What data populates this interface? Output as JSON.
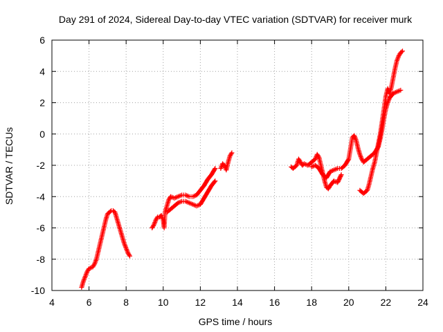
{
  "chart_data": {
    "type": "scatter",
    "title": "Day 291 of 2024, Sidereal Day-to-day VTEC variation (SDTVAR) for receiver murk",
    "xlabel": "GPS time / hours",
    "ylabel": "SDTVAR / TECUs",
    "xlim": [
      4,
      24
    ],
    "ylim": [
      -10,
      6
    ],
    "xticks": [
      4,
      6,
      8,
      10,
      12,
      14,
      16,
      18,
      20,
      22,
      24
    ],
    "yticks": [
      -10,
      -8,
      -6,
      -4,
      -2,
      0,
      2,
      4,
      6
    ],
    "grid": true,
    "marker": "+",
    "marker_color": "#ff0000",
    "segments": [
      [
        [
          5.6,
          -9.8
        ],
        [
          5.7,
          -9.4
        ],
        [
          5.8,
          -9.1
        ],
        [
          5.9,
          -8.8
        ],
        [
          6.0,
          -8.6
        ],
        [
          6.2,
          -8.5
        ],
        [
          6.3,
          -8.3
        ],
        [
          6.4,
          -8.0
        ],
        [
          6.5,
          -7.5
        ],
        [
          6.6,
          -7.0
        ],
        [
          6.7,
          -6.5
        ],
        [
          6.8,
          -6.0
        ],
        [
          6.9,
          -5.5
        ],
        [
          7.0,
          -5.1
        ],
        [
          7.1,
          -5.0
        ],
        [
          7.2,
          -4.9
        ],
        [
          7.3,
          -4.9
        ],
        [
          7.4,
          -5.0
        ],
        [
          7.5,
          -5.4
        ],
        [
          7.6,
          -5.8
        ],
        [
          7.7,
          -6.2
        ],
        [
          7.8,
          -6.6
        ],
        [
          7.9,
          -7.0
        ],
        [
          8.0,
          -7.3
        ],
        [
          8.1,
          -7.6
        ],
        [
          8.2,
          -7.8
        ]
      ],
      [
        [
          9.4,
          -6.0
        ],
        [
          9.5,
          -5.8
        ],
        [
          9.6,
          -5.5
        ],
        [
          9.7,
          -5.3
        ],
        [
          9.8,
          -5.3
        ],
        [
          9.9,
          -5.2
        ],
        [
          10.0,
          -5.5
        ],
        [
          10.05,
          -6.0
        ],
        [
          10.1,
          -5.0
        ],
        [
          10.2,
          -4.6
        ],
        [
          10.3,
          -4.2
        ],
        [
          10.4,
          -4.0
        ],
        [
          10.6,
          -4.1
        ],
        [
          10.8,
          -4.0
        ],
        [
          11.0,
          -3.9
        ],
        [
          11.2,
          -3.9
        ],
        [
          11.4,
          -4.0
        ],
        [
          11.6,
          -4.0
        ],
        [
          11.8,
          -3.9
        ],
        [
          12.0,
          -3.6
        ],
        [
          12.2,
          -3.3
        ],
        [
          12.4,
          -2.9
        ],
        [
          12.6,
          -2.6
        ],
        [
          12.8,
          -2.2
        ]
      ],
      [
        [
          10.2,
          -5.0
        ],
        [
          10.4,
          -4.8
        ],
        [
          10.6,
          -4.6
        ],
        [
          10.8,
          -4.4
        ],
        [
          11.0,
          -4.3
        ],
        [
          11.2,
          -4.3
        ],
        [
          11.4,
          -4.4
        ],
        [
          11.6,
          -4.5
        ],
        [
          11.8,
          -4.6
        ],
        [
          12.0,
          -4.5
        ],
        [
          12.2,
          -4.1
        ],
        [
          12.4,
          -3.7
        ],
        [
          12.6,
          -3.3
        ],
        [
          12.8,
          -3.0
        ]
      ],
      [
        [
          13.1,
          -2.2
        ],
        [
          13.2,
          -1.9
        ],
        [
          13.3,
          -2.0
        ],
        [
          13.4,
          -2.3
        ],
        [
          13.5,
          -1.8
        ],
        [
          13.6,
          -1.4
        ],
        [
          13.7,
          -1.2
        ]
      ],
      [
        [
          16.9,
          -2.1
        ],
        [
          17.0,
          -2.2
        ],
        [
          17.2,
          -2.0
        ],
        [
          17.3,
          -1.6
        ],
        [
          17.4,
          -1.8
        ],
        [
          17.5,
          -2.0
        ],
        [
          17.6,
          -1.9
        ],
        [
          17.8,
          -2.0
        ],
        [
          18.0,
          -1.8
        ],
        [
          18.2,
          -1.6
        ],
        [
          18.3,
          -1.3
        ],
        [
          18.4,
          -1.5
        ],
        [
          18.5,
          -2.0
        ],
        [
          18.6,
          -2.5
        ],
        [
          18.7,
          -3.0
        ],
        [
          18.8,
          -3.4
        ],
        [
          18.9,
          -3.5
        ],
        [
          19.0,
          -3.3
        ],
        [
          19.2,
          -3.0
        ],
        [
          19.4,
          -3.1
        ],
        [
          19.6,
          -2.6
        ]
      ],
      [
        [
          18.0,
          -2.1
        ],
        [
          18.2,
          -2.0
        ],
        [
          18.4,
          -2.2
        ],
        [
          18.6,
          -2.6
        ],
        [
          18.8,
          -2.8
        ],
        [
          19.0,
          -2.4
        ],
        [
          19.2,
          -2.3
        ],
        [
          19.4,
          -2.2
        ],
        [
          19.6,
          -2.2
        ],
        [
          19.8,
          -2.0
        ],
        [
          20.0,
          -1.6
        ],
        [
          20.1,
          -0.9
        ],
        [
          20.2,
          -0.2
        ],
        [
          20.3,
          -0.1
        ],
        [
          20.4,
          -0.4
        ],
        [
          20.5,
          -0.9
        ],
        [
          20.6,
          -1.3
        ],
        [
          20.7,
          -1.6
        ],
        [
          20.8,
          -1.8
        ],
        [
          21.0,
          -1.6
        ],
        [
          21.2,
          -1.4
        ],
        [
          21.4,
          -1.2
        ],
        [
          21.6,
          -0.8
        ],
        [
          21.7,
          -0.3
        ],
        [
          21.8,
          0.3
        ],
        [
          21.9,
          1.0
        ],
        [
          22.0,
          1.6
        ],
        [
          22.1,
          2.0
        ],
        [
          22.2,
          2.3
        ],
        [
          22.4,
          2.6
        ],
        [
          22.6,
          2.7
        ],
        [
          22.8,
          2.8
        ]
      ],
      [
        [
          20.6,
          -3.6
        ],
        [
          20.8,
          -3.8
        ],
        [
          21.0,
          -3.6
        ],
        [
          21.1,
          -3.2
        ],
        [
          21.2,
          -2.7
        ],
        [
          21.3,
          -2.2
        ],
        [
          21.4,
          -1.8
        ],
        [
          21.5,
          -1.2
        ],
        [
          21.6,
          -0.6
        ],
        [
          21.7,
          0.0
        ],
        [
          21.8,
          0.8
        ],
        [
          21.9,
          1.6
        ],
        [
          22.0,
          2.4
        ],
        [
          22.1,
          2.9
        ],
        [
          22.2,
          2.6
        ],
        [
          22.3,
          3.0
        ],
        [
          22.4,
          3.6
        ],
        [
          22.5,
          4.2
        ],
        [
          22.6,
          4.7
        ],
        [
          22.7,
          5.0
        ],
        [
          22.8,
          5.2
        ],
        [
          22.9,
          5.3
        ]
      ]
    ]
  }
}
